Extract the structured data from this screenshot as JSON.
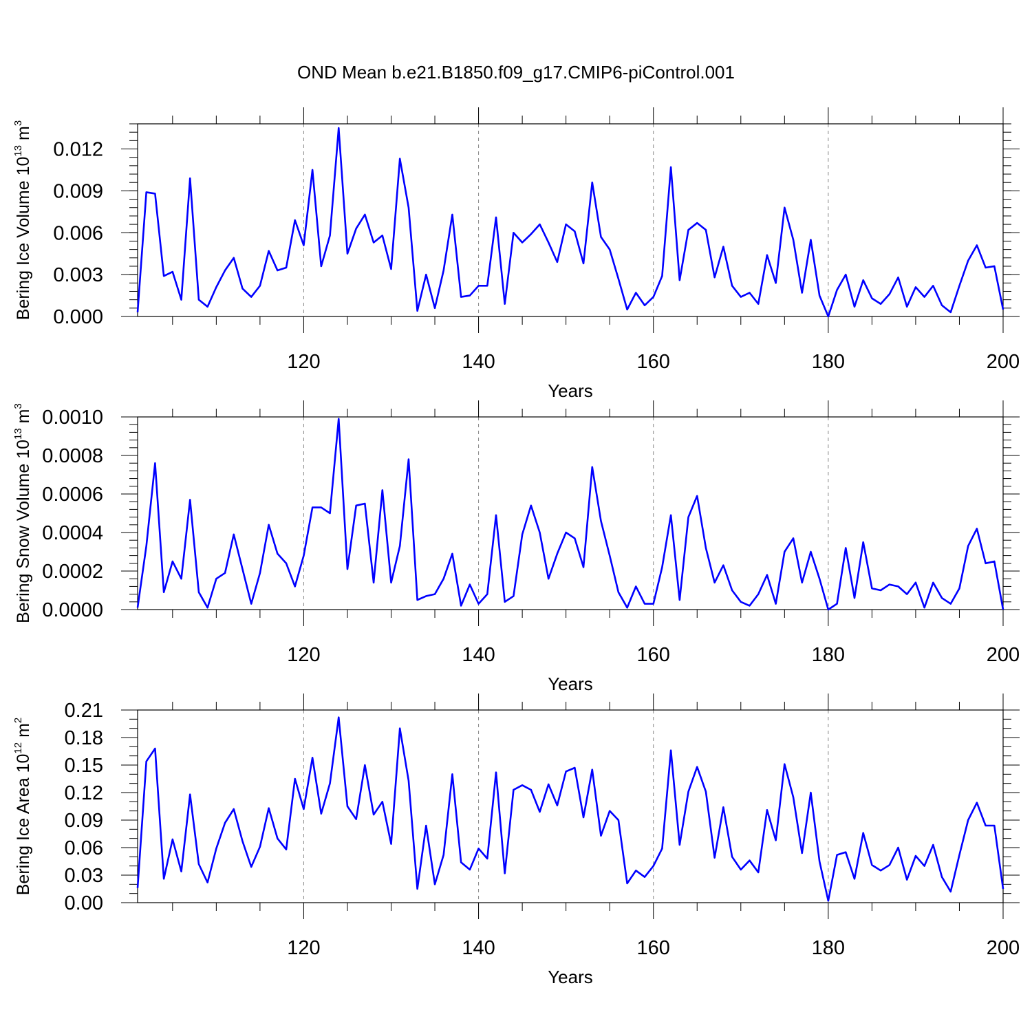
{
  "title": "OND Mean b.e21.B1850.f09_g17.CMIP6-piControl.001",
  "colors": {
    "line": "#0000ff",
    "axis": "#000000",
    "grid": "#888888"
  },
  "chart_data": [
    {
      "type": "line",
      "xlabel": "Years",
      "ylabel": {
        "text": "Bering Ice Volume 10",
        "sup": "13",
        "unit": " m",
        "unit_sup": "3"
      },
      "xlim": [
        101,
        200
      ],
      "ylim": [
        0,
        0.0138
      ],
      "x_ticks": [
        120,
        140,
        160,
        180,
        200
      ],
      "x_tick_labels": [
        "120",
        "140",
        "160",
        "180",
        "200"
      ],
      "y_ticks": [
        0,
        0.003,
        0.006,
        0.009,
        0.012
      ],
      "y_tick_labels": [
        "0.000",
        "0.003",
        "0.006",
        "0.009",
        "0.012"
      ],
      "y_minor_step": 0.0006,
      "grid_x": [
        120,
        140,
        160,
        180
      ],
      "series": [
        {
          "name": "Bering Ice Volume",
          "x_start": 101,
          "values": [
            0.0003,
            0.0089,
            0.0088,
            0.0029,
            0.0032,
            0.0012,
            0.0099,
            0.0012,
            0.0007,
            0.0021,
            0.0033,
            0.0042,
            0.002,
            0.0014,
            0.0022,
            0.0047,
            0.0033,
            0.0035,
            0.0069,
            0.0051,
            0.0105,
            0.0036,
            0.0058,
            0.0135,
            0.0045,
            0.0063,
            0.0073,
            0.0053,
            0.0058,
            0.0034,
            0.0113,
            0.0078,
            0.0004,
            0.003,
            0.0006,
            0.0033,
            0.0073,
            0.0014,
            0.0015,
            0.0022,
            0.0022,
            0.0071,
            0.0009,
            0.006,
            0.0053,
            0.0059,
            0.0066,
            0.0053,
            0.0039,
            0.0066,
            0.0061,
            0.0038,
            0.0096,
            0.0057,
            0.0048,
            0.0027,
            0.0005,
            0.0017,
            0.0008,
            0.0014,
            0.0029,
            0.0107,
            0.0026,
            0.0062,
            0.0067,
            0.0062,
            0.0028,
            0.005,
            0.0022,
            0.0014,
            0.0017,
            0.0009,
            0.0044,
            0.0024,
            0.0078,
            0.0055,
            0.0017,
            0.0055,
            0.0015,
            0.0,
            0.0019,
            0.003,
            0.0007,
            0.0026,
            0.0013,
            0.0009,
            0.0016,
            0.0028,
            0.0007,
            0.0021,
            0.0014,
            0.0022,
            0.0008,
            0.0003,
            0.0022,
            0.004,
            0.0051,
            0.0035,
            0.0036,
            0.0005
          ]
        }
      ]
    },
    {
      "type": "line",
      "xlabel": "Years",
      "ylabel": {
        "text": "Bering Snow Volume 10",
        "sup": "13",
        "unit": " m",
        "unit_sup": "3"
      },
      "xlim": [
        101,
        200
      ],
      "ylim": [
        0,
        0.001
      ],
      "x_ticks": [
        120,
        140,
        160,
        180,
        200
      ],
      "x_tick_labels": [
        "120",
        "140",
        "160",
        "180",
        "200"
      ],
      "y_ticks": [
        0,
        0.0002,
        0.0004,
        0.0006,
        0.0008,
        0.001
      ],
      "y_tick_labels": [
        "0.0000",
        "0.0002",
        "0.0004",
        "0.0006",
        "0.0008",
        "0.0010"
      ],
      "y_minor_step": 4e-05,
      "grid_x": [
        120,
        140,
        160,
        180
      ],
      "series": [
        {
          "name": "Bering Snow Volume",
          "x_start": 101,
          "values": [
            1e-05,
            0.00033,
            0.00076,
            9e-05,
            0.00025,
            0.00016,
            0.00057,
            9e-05,
            1e-05,
            0.00016,
            0.00019,
            0.00039,
            0.00021,
            3e-05,
            0.00019,
            0.00044,
            0.00029,
            0.00024,
            0.00012,
            0.00028,
            0.00053,
            0.00053,
            0.0005,
            0.00099,
            0.00021,
            0.00054,
            0.00055,
            0.00014,
            0.00062,
            0.00014,
            0.00033,
            0.00078,
            5e-05,
            7e-05,
            8e-05,
            0.00016,
            0.00029,
            2e-05,
            0.00013,
            3e-05,
            8e-05,
            0.00049,
            4e-05,
            7e-05,
            0.00039,
            0.00054,
            0.0004,
            0.00016,
            0.00029,
            0.0004,
            0.00037,
            0.00022,
            0.00074,
            0.00046,
            0.00028,
            9e-05,
            1e-05,
            0.00012,
            3e-05,
            3e-05,
            0.00022,
            0.00049,
            5e-05,
            0.00048,
            0.00059,
            0.00032,
            0.00014,
            0.00023,
            0.0001,
            4e-05,
            2e-05,
            8e-05,
            0.00018,
            3e-05,
            0.0003,
            0.00037,
            0.00014,
            0.0003,
            0.00016,
            0.0,
            3e-05,
            0.00032,
            6e-05,
            0.00035,
            0.00011,
            0.0001,
            0.00013,
            0.00012,
            8e-05,
            0.00014,
            1e-05,
            0.00014,
            6e-05,
            3e-05,
            0.00011,
            0.00033,
            0.00042,
            0.00024,
            0.00025,
            0.0
          ]
        }
      ]
    },
    {
      "type": "line",
      "xlabel": "Years",
      "ylabel": {
        "text": "Bering Ice Area 10",
        "sup": "12",
        "unit": " m",
        "unit_sup": "2"
      },
      "xlim": [
        101,
        200
      ],
      "ylim": [
        0,
        0.21
      ],
      "x_ticks": [
        120,
        140,
        160,
        180,
        200
      ],
      "x_tick_labels": [
        "120",
        "140",
        "160",
        "180",
        "200"
      ],
      "y_ticks": [
        0,
        0.03,
        0.06,
        0.09,
        0.12,
        0.15,
        0.18,
        0.21
      ],
      "y_tick_labels": [
        "0.00",
        "0.03",
        "0.06",
        "0.09",
        "0.12",
        "0.15",
        "0.18",
        "0.21"
      ],
      "y_minor_step": 0.01,
      "grid_x": [
        120,
        140,
        160,
        180
      ],
      "series": [
        {
          "name": "Bering Ice Area",
          "x_start": 101,
          "values": [
            0.016,
            0.154,
            0.168,
            0.026,
            0.069,
            0.034,
            0.118,
            0.042,
            0.022,
            0.059,
            0.087,
            0.102,
            0.067,
            0.039,
            0.061,
            0.103,
            0.07,
            0.058,
            0.135,
            0.102,
            0.158,
            0.097,
            0.13,
            0.202,
            0.105,
            0.091,
            0.15,
            0.096,
            0.11,
            0.064,
            0.19,
            0.133,
            0.015,
            0.084,
            0.02,
            0.052,
            0.14,
            0.044,
            0.036,
            0.059,
            0.048,
            0.142,
            0.032,
            0.123,
            0.128,
            0.123,
            0.099,
            0.129,
            0.106,
            0.143,
            0.147,
            0.093,
            0.145,
            0.073,
            0.1,
            0.09,
            0.021,
            0.035,
            0.028,
            0.04,
            0.059,
            0.166,
            0.063,
            0.121,
            0.148,
            0.121,
            0.049,
            0.104,
            0.05,
            0.036,
            0.046,
            0.033,
            0.101,
            0.068,
            0.151,
            0.115,
            0.054,
            0.12,
            0.045,
            0.002,
            0.052,
            0.055,
            0.026,
            0.076,
            0.041,
            0.035,
            0.041,
            0.06,
            0.025,
            0.051,
            0.04,
            0.063,
            0.028,
            0.012,
            0.052,
            0.09,
            0.109,
            0.084,
            0.084,
            0.015
          ]
        }
      ]
    }
  ]
}
